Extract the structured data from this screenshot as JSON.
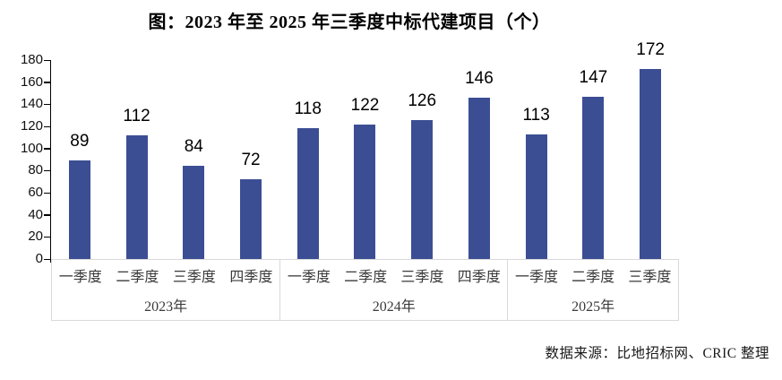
{
  "chart_data": {
    "type": "bar",
    "title": "图：2023 年至 2025 年三季度中标代建项目（个）",
    "xlabel": "",
    "ylabel": "",
    "ylim": [
      0,
      180
    ],
    "ytick_step": 20,
    "grid": false,
    "legend": false,
    "bar_color": "#3B4E94",
    "categories": [
      "一季度",
      "二季度",
      "三季度",
      "四季度",
      "一季度",
      "二季度",
      "三季度",
      "四季度",
      "一季度",
      "二季度",
      "三季度"
    ],
    "values": [
      89,
      112,
      84,
      72,
      118,
      122,
      126,
      146,
      113,
      147,
      172
    ],
    "groups": [
      {
        "year": "2023年",
        "quarters": [
          "一季度",
          "二季度",
          "三季度",
          "四季度"
        ],
        "values": [
          89,
          112,
          84,
          72
        ]
      },
      {
        "year": "2024年",
        "quarters": [
          "一季度",
          "二季度",
          "三季度",
          "四季度"
        ],
        "values": [
          118,
          122,
          126,
          146
        ]
      },
      {
        "year": "2025年",
        "quarters": [
          "一季度",
          "二季度",
          "三季度"
        ],
        "values": [
          113,
          147,
          172
        ]
      }
    ],
    "source_note": "数据来源：比地招标网、CRIC 整理"
  }
}
